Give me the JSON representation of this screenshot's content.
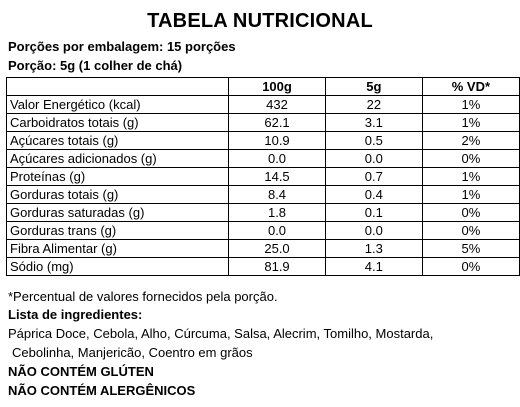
{
  "title": "TABELA NUTRICIONAL",
  "servings_per_package": "Porções por embalagem: 15 porções",
  "serving_size": "Porção: 5g (1 colher de chá)",
  "table": {
    "headers": [
      "",
      "100g",
      "5g",
      "% VD*"
    ],
    "rows": [
      [
        "Valor Energético (kcal)",
        "432",
        "22",
        "1%"
      ],
      [
        "Carboidratos totais (g)",
        "62.1",
        "3.1",
        "1%"
      ],
      [
        "Açúcares totais (g)",
        "10.9",
        "0.5",
        "2%"
      ],
      [
        "Açúcares adicionados (g)",
        "0.0",
        "0.0",
        "0%"
      ],
      [
        "Proteínas (g)",
        "14.5",
        "0.7",
        "1%"
      ],
      [
        "Gorduras totais (g)",
        "8.4",
        "0.4",
        "1%"
      ],
      [
        "Gorduras saturadas (g)",
        "1.8",
        "0.1",
        "0%"
      ],
      [
        "Gorduras trans (g)",
        "0.0",
        "0.0",
        "0%"
      ],
      [
        "Fibra Alimentar (g)",
        "25.0",
        "1.3",
        "5%"
      ],
      [
        "Sódio (mg)",
        "81.9",
        "4.1",
        "0%"
      ]
    ]
  },
  "footnote": "*Percentual de valores fornecidos pela porção.",
  "ingredients_heading": "Lista de ingredientes:",
  "ingredients_line1": "Páprica Doce, Cebola, Alho, Cúrcuma, Salsa, Alecrim, Tomilho, Mostarda,",
  "ingredients_line2": "Cebolinha, Manjericão, Coentro em grãos",
  "gluten_notice": "NÃO CONTÉM GLÚTEN",
  "allergen_notice": "NÃO CONTÉM ALERGÊNICOS"
}
